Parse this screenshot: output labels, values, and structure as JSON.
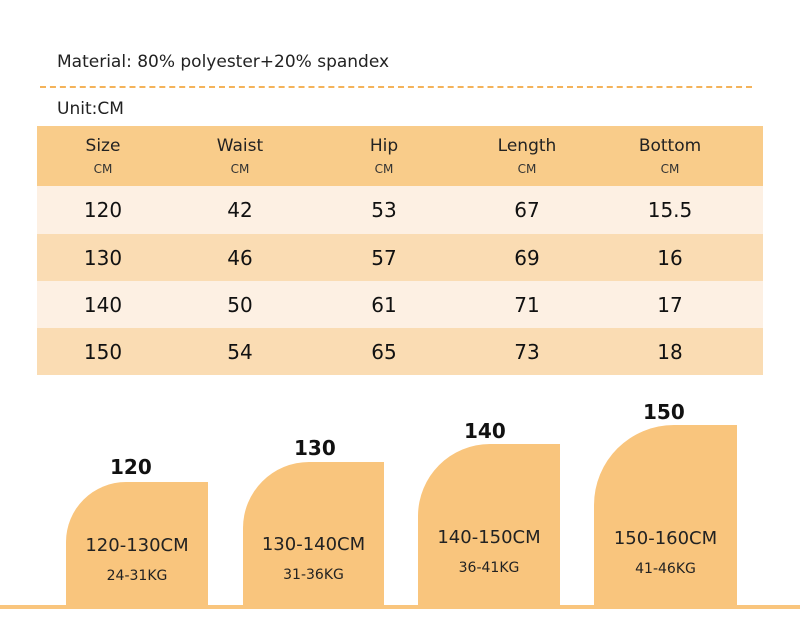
{
  "material": "Material: 80% polyester+20% spandex",
  "unit": "Unit:CM",
  "table": {
    "headers": [
      {
        "name": "Size",
        "unit": "CM"
      },
      {
        "name": "Waist",
        "unit": "CM"
      },
      {
        "name": "Hip",
        "unit": "CM"
      },
      {
        "name": "Length",
        "unit": "CM"
      },
      {
        "name": "Bottom",
        "unit": "CM"
      }
    ],
    "rows": [
      [
        "120",
        "42",
        "53",
        "67",
        "15.5"
      ],
      [
        "130",
        "46",
        "57",
        "69",
        "16"
      ],
      [
        "140",
        "50",
        "61",
        "71",
        "17"
      ],
      [
        "150",
        "54",
        "65",
        "73",
        "18"
      ]
    ]
  },
  "cards": [
    {
      "size": "120",
      "height_range": "120-130CM",
      "weight_range": "24-31KG"
    },
    {
      "size": "130",
      "height_range": "130-140CM",
      "weight_range": "31-36KG"
    },
    {
      "size": "140",
      "height_range": "140-150CM",
      "weight_range": "36-41KG"
    },
    {
      "size": "150",
      "height_range": "150-160CM",
      "weight_range": "41-46KG"
    }
  ],
  "colors": {
    "header_row": "#f9cc8a",
    "light_row": "#fdf0e3",
    "mid_row": "#fadcb3",
    "card": "#f9c57d",
    "divider": "#f4b35a"
  }
}
